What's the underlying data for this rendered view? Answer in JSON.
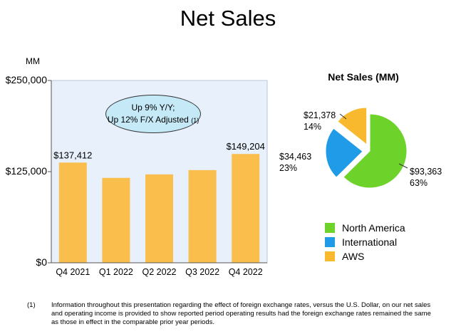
{
  "page": {
    "title": "Net Sales",
    "unit_label": "MM"
  },
  "chart_data": [
    {
      "type": "bar",
      "categories": [
        "Q4 2021",
        "Q1 2022",
        "Q2 2022",
        "Q3 2022",
        "Q4 2022"
      ],
      "values": [
        137412,
        116444,
        121234,
        127101,
        149204
      ],
      "data_labels": [
        "$137,412",
        "",
        "",
        "",
        "$149,204"
      ],
      "y_ticks": [
        0,
        125000,
        250000
      ],
      "y_tick_labels": [
        "$0",
        "$125,000",
        "$250,000"
      ],
      "ylim": [
        0,
        250000
      ],
      "grid": false,
      "bar_color": "#f9be4c",
      "plot_bg": "#e8f0fb",
      "annotation": {
        "line1": "Up 9% Y/Y;",
        "line2": "Up 12% F/X Adjusted",
        "footnote_ref": "(1)"
      }
    },
    {
      "type": "pie",
      "title": "Net Sales (MM)",
      "slices": [
        {
          "name": "North America",
          "value": 93363,
          "label": "$93,363",
          "percent": "63%",
          "color": "#6dd22a"
        },
        {
          "name": "International",
          "value": 34463,
          "label": "$34,463",
          "percent": "23%",
          "color": "#1f9be8"
        },
        {
          "name": "AWS",
          "value": 21378,
          "label": "$21,378",
          "percent": "14%",
          "color": "#f9b92e"
        }
      ],
      "legend": [
        "North America",
        "International",
        "AWS"
      ],
      "legend_position": "bottom"
    }
  ],
  "footnote": {
    "number": "(1)",
    "text": "Information throughout this presentation regarding the effect of foreign exchange rates, versus the U.S. Dollar, on our net sales and operating income is provided to show reported period operating results had the foreign exchange rates remained the same as those in effect in the comparable prior year periods."
  }
}
